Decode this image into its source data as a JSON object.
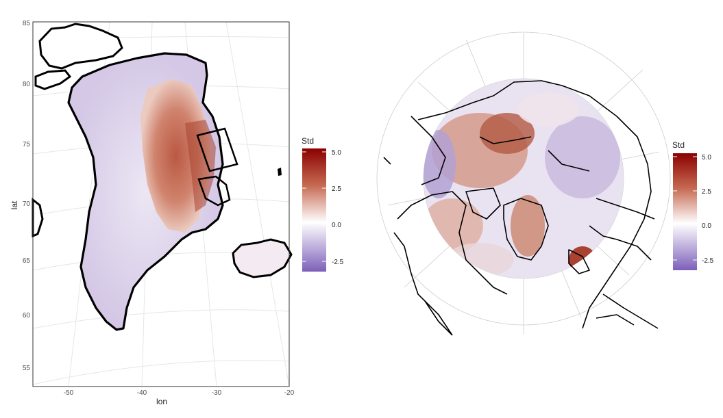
{
  "left_map": {
    "ylabel": "lat",
    "xlabel": "lon",
    "y_ticks": [
      "85",
      "80",
      "75",
      "70",
      "65",
      "60",
      "55"
    ],
    "x_ticks": [
      "-50",
      "-40",
      "-30",
      "-20"
    ],
    "legend": {
      "title": "Std",
      "ticks": [
        "5.0",
        "2.5",
        "0.0",
        "-2.5"
      ]
    }
  },
  "right_map": {
    "legend": {
      "title": "Std",
      "ticks": [
        "5.0",
        "2.5",
        "0.0",
        "-2.5"
      ]
    }
  },
  "colors": {
    "high": "#8b0000",
    "mid_high": "#c4644e",
    "zero": "#ffffff",
    "low": "#7b5cb8",
    "graticule": "#e3e3e3",
    "coast": "#000000"
  }
}
